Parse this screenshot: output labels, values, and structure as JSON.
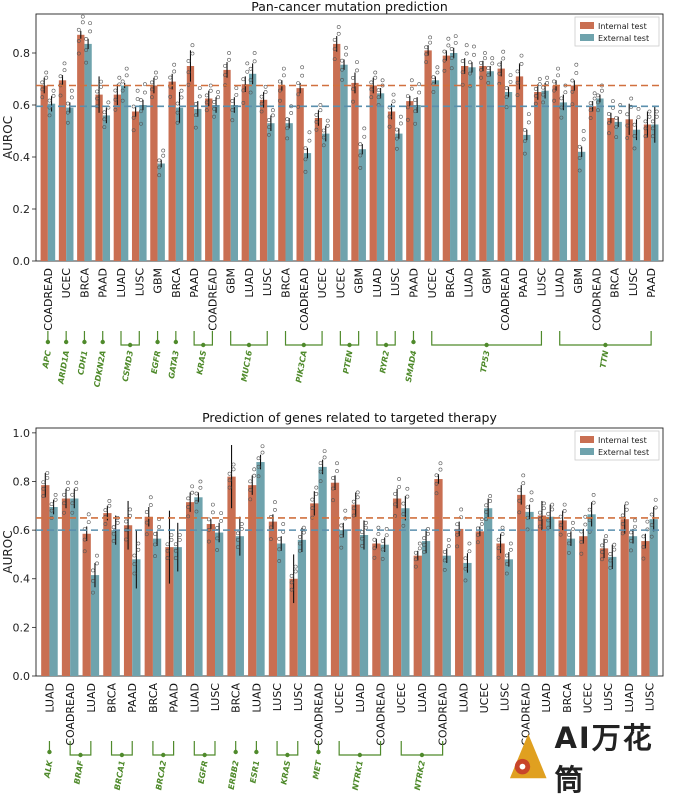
{
  "colors": {
    "internal": "#c96f52",
    "external": "#6fa3ad",
    "internal_line": "#d1703f",
    "external_line": "#5a8fad",
    "gene_label": "#4f8a2b",
    "connector": "#4f8a2b"
  },
  "watermark": {
    "text": "AI万花筒"
  },
  "chart_data": [
    {
      "type": "bar",
      "title": "Pan-cancer mutation prediction",
      "xlabel": "",
      "ylabel": "AUROC",
      "ylim": [
        0,
        0.95
      ],
      "yticks": [
        "0.0",
        "0.2",
        "0.4",
        "0.6",
        "0.8"
      ],
      "legend": {
        "position": "top-right",
        "entries": [
          "Internal test",
          "External test"
        ]
      },
      "reference_lines": {
        "internal": 0.675,
        "external": 0.595
      },
      "categories": [
        "COADREAD",
        "UCEC",
        "BRCA",
        "PAAD",
        "LUAD",
        "LUSC",
        "GBM",
        "BRCA",
        "PAAD",
        "COADREAD",
        "GBM",
        "LUAD",
        "LUSC",
        "BRCA",
        "COADREAD",
        "UCEC",
        "UCEC",
        "GBM",
        "LUAD",
        "LUSC",
        "PAAD",
        "UCEC",
        "BRCA",
        "LUAD",
        "GBM",
        "COADREAD",
        "PAAD",
        "LUSC",
        "LUAD",
        "GBM",
        "COADREAD",
        "BRCA",
        "LUSC",
        "PAAD"
      ],
      "series": [
        {
          "name": "Internal test",
          "values": [
            0.675,
            0.695,
            0.87,
            0.64,
            0.64,
            0.575,
            0.675,
            0.69,
            0.75,
            0.625,
            0.735,
            0.68,
            0.62,
            0.675,
            0.665,
            0.55,
            0.835,
            0.685,
            0.675,
            0.575,
            0.615,
            0.81,
            0.79,
            0.75,
            0.75,
            0.74,
            0.71,
            0.65,
            0.675,
            0.675,
            0.595,
            0.55,
            0.545,
            0.525
          ],
          "errors": [
            0.03,
            0.02,
            0.015,
            0.07,
            0.04,
            0.02,
            0.03,
            0.03,
            0.06,
            0.03,
            0.03,
            0.03,
            0.03,
            0.02,
            0.02,
            0.03,
            0.03,
            0.04,
            0.03,
            0.03,
            0.02,
            0.02,
            0.02,
            0.03,
            0.02,
            0.03,
            0.05,
            0.03,
            0.02,
            0.02,
            0.02,
            0.02,
            0.06,
            0.05
          ]
        },
        {
          "name": "External test",
          "values": [
            0.605,
            0.59,
            0.835,
            0.56,
            0.675,
            0.6,
            0.375,
            0.59,
            0.585,
            0.6,
            0.6,
            0.72,
            0.53,
            0.53,
            0.415,
            0.49,
            0.755,
            0.43,
            0.645,
            0.49,
            0.6,
            0.695,
            0.8,
            0.745,
            0.73,
            0.65,
            0.485,
            0.655,
            0.61,
            0.42,
            0.625,
            0.535,
            0.505,
            0.525
          ],
          "errors": [
            0.03,
            0.02,
            0.02,
            0.03,
            0.01,
            0.02,
            0.015,
            0.06,
            0.03,
            0.03,
            0.03,
            0.04,
            0.03,
            0.02,
            0.02,
            0.03,
            0.02,
            0.02,
            0.02,
            0.02,
            0.03,
            0.015,
            0.02,
            0.02,
            0.02,
            0.02,
            0.02,
            0.03,
            0.03,
            0.02,
            0.015,
            0.02,
            0.04,
            0.07
          ]
        }
      ],
      "genes": [
        {
          "label": "APC",
          "start": 0,
          "end": 0
        },
        {
          "label": "ARID1A",
          "start": 1,
          "end": 1
        },
        {
          "label": "CDH1",
          "start": 2,
          "end": 2
        },
        {
          "label": "CDKN2A",
          "start": 3,
          "end": 3
        },
        {
          "label": "CSMD3",
          "start": 4,
          "end": 5
        },
        {
          "label": "EGFR",
          "start": 6,
          "end": 6
        },
        {
          "label": "GATA3",
          "start": 7,
          "end": 7
        },
        {
          "label": "KRAS",
          "start": 8,
          "end": 9
        },
        {
          "label": "MUC16",
          "start": 10,
          "end": 12
        },
        {
          "label": "PIK3CA",
          "start": 13,
          "end": 15
        },
        {
          "label": "PTEN",
          "start": 16,
          "end": 17
        },
        {
          "label": "RYR2",
          "start": 18,
          "end": 19
        },
        {
          "label": "SMAD4",
          "start": 20,
          "end": 20
        },
        {
          "label": "TP53",
          "start": 21,
          "end": 27
        },
        {
          "label": "TTN",
          "start": 28,
          "end": 33
        }
      ]
    },
    {
      "type": "bar",
      "title": "Prediction of genes related to targeted therapy",
      "xlabel": "",
      "ylabel": "AUROC",
      "ylim": [
        0,
        1.02
      ],
      "yticks": [
        "0.0",
        "0.2",
        "0.4",
        "0.6",
        "0.8",
        "1.0"
      ],
      "legend": {
        "position": "top-right",
        "entries": [
          "Internal test",
          "External test"
        ]
      },
      "reference_lines": {
        "internal": 0.65,
        "external": 0.6
      },
      "categories": [
        "LUAD",
        "COADREAD",
        "LUAD",
        "BRCA",
        "PAAD",
        "BRCA",
        "PAAD",
        "LUAD",
        "LUSC",
        "BRCA",
        "LUAD",
        "LUSC",
        "LUSC",
        "COADREAD",
        "UCEC",
        "LUAD",
        "COADREAD",
        "UCEC",
        "LUAD",
        "COADREAD",
        "LUAD",
        "UCEC",
        "LUSC",
        "COADREAD",
        "LUAD",
        "BRCA",
        "UCEC",
        "LUSC",
        "LUAD",
        "LUSC"
      ],
      "series": [
        {
          "name": "Internal test",
          "values": [
            0.785,
            0.73,
            0.585,
            0.67,
            0.62,
            0.655,
            0.53,
            0.715,
            0.625,
            0.82,
            0.785,
            0.635,
            0.4,
            0.71,
            0.795,
            0.705,
            0.545,
            0.73,
            0.495,
            0.81,
            0.605,
            0.595,
            0.545,
            0.745,
            0.66,
            0.64,
            0.575,
            0.525,
            0.645,
            0.555
          ],
          "errors": [
            0.05,
            0.04,
            0.03,
            0.03,
            0.1,
            0.04,
            0.15,
            0.04,
            0.02,
            0.13,
            0.04,
            0.03,
            0.1,
            0.05,
            0.03,
            0.05,
            0.02,
            0.04,
            0.02,
            0.02,
            0.03,
            0.02,
            0.04,
            0.04,
            0.06,
            0.04,
            0.03,
            0.04,
            0.06,
            0.03
          ]
        },
        {
          "name": "External test",
          "values": [
            0.695,
            0.73,
            0.415,
            0.6,
            0.48,
            0.565,
            0.53,
            0.735,
            0.59,
            0.575,
            0.88,
            0.545,
            0.56,
            0.86,
            0.6,
            0.58,
            0.54,
            0.69,
            0.555,
            0.495,
            0.465,
            0.69,
            0.48,
            0.675,
            0.655,
            0.565,
            0.665,
            0.49,
            0.575,
            0.645
          ],
          "errors": [
            0.03,
            0.04,
            0.05,
            0.06,
            0.12,
            0.03,
            0.1,
            0.02,
            0.04,
            0.08,
            0.03,
            0.03,
            0.05,
            0.03,
            0.03,
            0.06,
            0.03,
            0.05,
            0.05,
            0.03,
            0.04,
            0.04,
            0.03,
            0.03,
            0.05,
            0.03,
            0.05,
            0.05,
            0.03,
            0.05
          ]
        }
      ],
      "genes": [
        {
          "label": "ALK",
          "start": 0,
          "end": 0
        },
        {
          "label": "BRAF",
          "start": 1,
          "end": 2
        },
        {
          "label": "BRCA1",
          "start": 3,
          "end": 4
        },
        {
          "label": "BRCA2",
          "start": 5,
          "end": 6
        },
        {
          "label": "EGFR",
          "start": 7,
          "end": 8
        },
        {
          "label": "ERBB2",
          "start": 9,
          "end": 9
        },
        {
          "label": "ESR1",
          "start": 10,
          "end": 10
        },
        {
          "label": "KRAS",
          "start": 11,
          "end": 12
        },
        {
          "label": "MET",
          "start": 13,
          "end": 13
        },
        {
          "label": "NTRK1",
          "start": 14,
          "end": 16
        },
        {
          "label": "NTRK2",
          "start": 17,
          "end": 19
        }
      ]
    }
  ]
}
